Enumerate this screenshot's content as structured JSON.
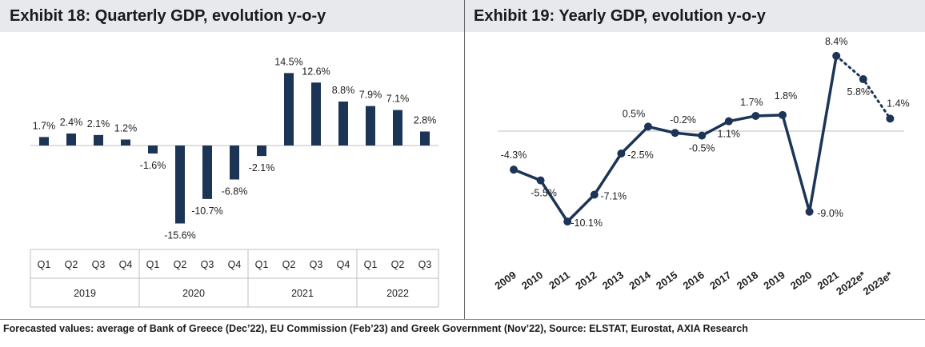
{
  "footnote": "Forecasted values: average of Bank of Greece (Dec’22), EU Commission (Feb’23) and Greek Government (Nov’22), Source: ELSTAT, Eurostat, AXIA Research",
  "colors": {
    "series": "#1c3557",
    "axis": "#bfbfbf",
    "title_bg": "#e8e9ec"
  },
  "chart_data": [
    {
      "type": "bar",
      "title": "Exhibit 18: Quarterly GDP, evolution y-o-y",
      "categories": [
        "Q1",
        "Q2",
        "Q3",
        "Q4",
        "Q1",
        "Q2",
        "Q3",
        "Q4",
        "Q1",
        "Q2",
        "Q3",
        "Q4",
        "Q1",
        "Q2",
        "Q3"
      ],
      "groups": [
        {
          "label": "2019",
          "count": 4
        },
        {
          "label": "2020",
          "count": 4
        },
        {
          "label": "2021",
          "count": 4
        },
        {
          "label": "2022",
          "count": 3
        }
      ],
      "values": [
        1.7,
        2.4,
        2.1,
        1.2,
        -1.6,
        -15.6,
        -10.7,
        -6.8,
        -2.1,
        14.5,
        12.6,
        8.8,
        7.9,
        7.1,
        2.8
      ],
      "labels": [
        "1.7%",
        "2.4%",
        "2.1%",
        "1.2%",
        "-1.6%",
        "-15.6%",
        "-10.7%",
        "-6.8%",
        "-2.1%",
        "14.5%",
        "12.6%",
        "8.8%",
        "7.9%",
        "7.1%",
        "2.8%"
      ],
      "ylim": [
        -16,
        15
      ],
      "xlabel": "",
      "ylabel": ""
    },
    {
      "type": "line",
      "title": "Exhibit 19: Yearly GDP, evolution y-o-y",
      "x": [
        "2009",
        "2010",
        "2011",
        "2012",
        "2013",
        "2014",
        "2015",
        "2016",
        "2017",
        "2018",
        "2019",
        "2020",
        "2021",
        "2022e*",
        "2023e*"
      ],
      "values": [
        -4.3,
        -5.5,
        -10.1,
        -7.1,
        -2.5,
        0.5,
        -0.2,
        -0.5,
        1.1,
        1.7,
        1.8,
        -9.0,
        8.4,
        5.8,
        1.4
      ],
      "labels": [
        "-4.3%",
        "-5.5%",
        "-10.1%",
        "-7.1%",
        "-2.5%",
        "0.5%",
        "-0.2%",
        "-0.5%",
        "1.1%",
        "1.7%",
        "1.8%",
        "-9.0%",
        "8.4%",
        "5.8%",
        "1.4%"
      ],
      "forecast_from_index": 12,
      "ylim": [
        -10.5,
        9
      ],
      "xlabel": "",
      "ylabel": ""
    }
  ]
}
